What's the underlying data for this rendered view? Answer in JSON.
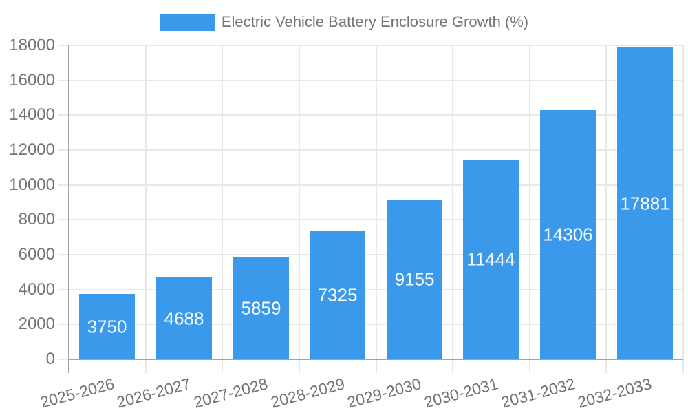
{
  "chart_data": {
    "type": "bar",
    "title": "Electric Vehicle Battery Enclosure Growth (%)",
    "categories": [
      "2025-2026",
      "2026-2027",
      "2027-2028",
      "2028-2029",
      "2029-2030",
      "2030-2031",
      "2031-2032",
      "2032-2033"
    ],
    "values": [
      3750,
      4688,
      5859,
      7325,
      9155,
      11444,
      14306,
      17881
    ],
    "xlabel": "",
    "ylabel": "",
    "ylim": [
      0,
      18000
    ],
    "ytick_step": 2000,
    "grid": true,
    "legend_position": "top-center",
    "bar_label_position": "center-inside",
    "colors": {
      "bar": "#3b99ec",
      "bar_label_text": "#ffffff",
      "tick_text": "#737373",
      "legend_text": "#757575",
      "gridline": "#e8e8e8",
      "axis_line": "#a3a3a3",
      "background": "#ffffff"
    }
  }
}
